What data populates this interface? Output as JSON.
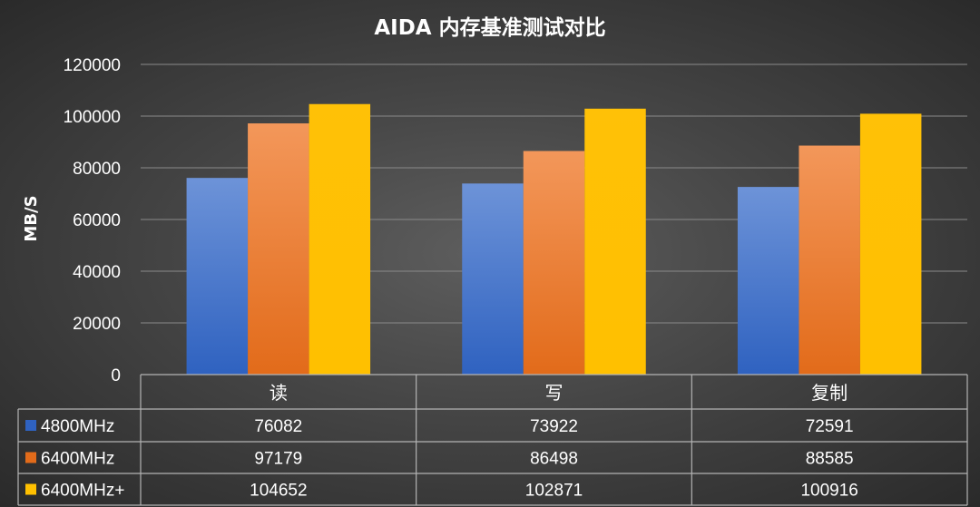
{
  "chart_data": {
    "type": "bar",
    "title": "AIDA 内存基准测试对比",
    "xlabel": "",
    "ylabel": "MB/S",
    "ylim": [
      0,
      120000
    ],
    "yticks": [
      0,
      20000,
      40000,
      60000,
      80000,
      100000,
      120000
    ],
    "categories": [
      "读",
      "写",
      "复制"
    ],
    "series": [
      {
        "name": "4800MHz",
        "values": [
          76082,
          73922,
          72591
        ]
      },
      {
        "name": "6400MHz",
        "values": [
          97179,
          86498,
          88585
        ]
      },
      {
        "name": "6400MHz+",
        "values": [
          104652,
          102871,
          100916
        ]
      }
    ],
    "legend": "data-table",
    "grid": true,
    "colors": {
      "4800MHz": [
        "#6d93d8",
        "#2f62c0"
      ],
      "6400MHz": [
        "#f3975a",
        "#e26b1a"
      ],
      "6400MHz+": [
        "#ffc107",
        "#ffc000"
      ],
      "gridline": "#8a8a8a",
      "table_border": "#b3b3b3"
    }
  }
}
